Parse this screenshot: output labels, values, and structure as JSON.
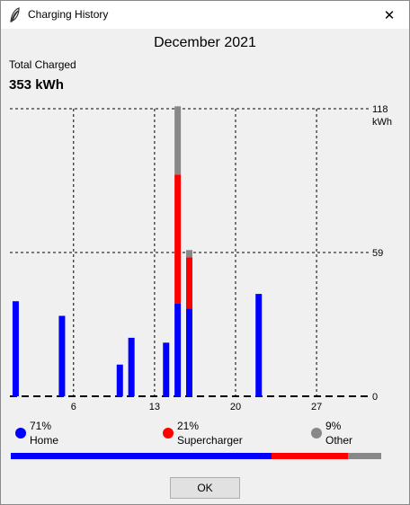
{
  "window": {
    "title": "Charging History",
    "close_glyph": "✕"
  },
  "header": {
    "month": "December 2021",
    "total_label": "Total Charged",
    "total_value": "353 kWh"
  },
  "colors": {
    "home": "#0000ff",
    "supercharger": "#ff0000",
    "other": "#888888"
  },
  "chart_data": {
    "type": "bar",
    "stacked": true,
    "days_in_month": 31,
    "x_ticks": [
      "6",
      "13",
      "20",
      "27"
    ],
    "x_tick_days": [
      6,
      13,
      20,
      27
    ],
    "y_ticks": [
      "0",
      "59",
      "118"
    ],
    "y_unit": "kWh",
    "ylim": [
      0,
      118
    ],
    "grid": true,
    "bars": [
      {
        "day": 1,
        "home": 39,
        "supercharger": 0,
        "other": 0
      },
      {
        "day": 5,
        "home": 33,
        "supercharger": 0,
        "other": 0
      },
      {
        "day": 10,
        "home": 13,
        "supercharger": 0,
        "other": 0
      },
      {
        "day": 11,
        "home": 24,
        "supercharger": 0,
        "other": 0
      },
      {
        "day": 14,
        "home": 22,
        "supercharger": 0,
        "other": 0
      },
      {
        "day": 15,
        "home": 38,
        "supercharger": 53,
        "other": 28
      },
      {
        "day": 16,
        "home": 36,
        "supercharger": 21,
        "other": 3
      },
      {
        "day": 22,
        "home": 42,
        "supercharger": 0,
        "other": 0
      }
    ]
  },
  "legend": [
    {
      "key": "home",
      "pct": "71%",
      "name": "Home",
      "fraction": 0.71
    },
    {
      "key": "supercharger",
      "pct": "21%",
      "name": "Supercharger",
      "fraction": 0.21
    },
    {
      "key": "other",
      "pct": "9%",
      "name": "Other",
      "fraction": 0.09
    }
  ],
  "footer": {
    "ok_label": "OK"
  }
}
